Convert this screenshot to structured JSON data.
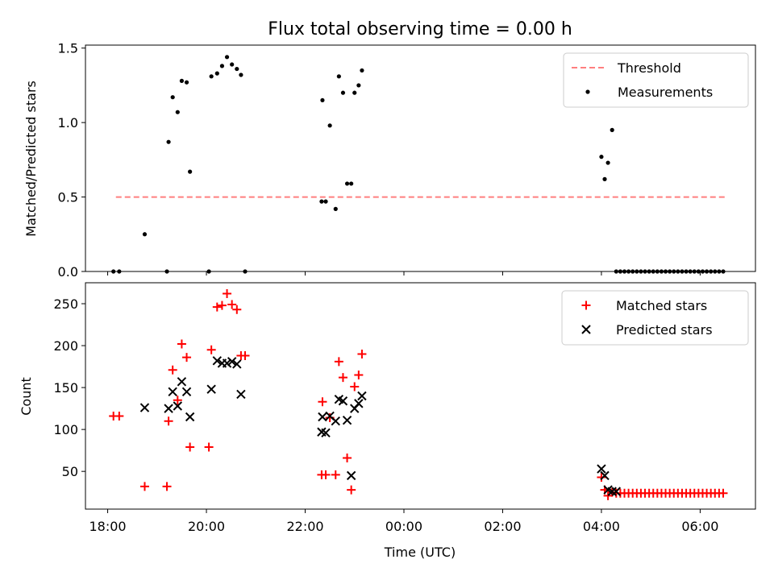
{
  "chart_data": [
    {
      "type": "scatter",
      "title": "Flux total observing time = 0.00 h",
      "xlabel": "",
      "ylabel": "Matched/Predicted stars",
      "xlim_hours": [
        17.55,
        31.12
      ],
      "ylim": [
        0,
        1.52
      ],
      "yticks": [
        0.0,
        0.5,
        1.0,
        1.5
      ],
      "ytick_labels": [
        "0.0",
        "0.5",
        "1.0",
        "1.5"
      ],
      "legend": {
        "position": "top-right",
        "entries": [
          "Threshold",
          "Measurements"
        ]
      },
      "threshold": {
        "name": "Threshold",
        "value": 0.5,
        "x_start": "18:10",
        "x_end": "06:30",
        "color": "#ff7f7f"
      },
      "series": [
        {
          "name": "Measurements",
          "marker": "dot",
          "color": "#000000",
          "points": [
            [
              "18:07",
              0.0
            ],
            [
              "18:14",
              0.0
            ],
            [
              "18:45",
              0.25
            ],
            [
              "19:12",
              0.0
            ],
            [
              "19:14",
              0.87
            ],
            [
              "19:19",
              1.17
            ],
            [
              "19:25",
              1.07
            ],
            [
              "19:30",
              1.28
            ],
            [
              "19:36",
              1.27
            ],
            [
              "19:40",
              0.67
            ],
            [
              "20:03",
              0.0
            ],
            [
              "20:06",
              1.31
            ],
            [
              "20:13",
              1.33
            ],
            [
              "20:19",
              1.38
            ],
            [
              "20:25",
              1.44
            ],
            [
              "20:31",
              1.39
            ],
            [
              "20:37",
              1.36
            ],
            [
              "20:42",
              1.32
            ],
            [
              "20:47",
              0.0
            ],
            [
              "22:20",
              0.47
            ],
            [
              "22:21",
              1.15
            ],
            [
              "22:25",
              0.47
            ],
            [
              "22:30",
              0.98
            ],
            [
              "22:37",
              0.42
            ],
            [
              "22:41",
              1.31
            ],
            [
              "22:46",
              1.2
            ],
            [
              "22:51",
              0.59
            ],
            [
              "22:56",
              0.59
            ],
            [
              "23:00",
              1.2
            ],
            [
              "23:05",
              1.25
            ],
            [
              "23:09",
              1.35
            ],
            [
              "04:00",
              0.77
            ],
            [
              "04:04",
              0.62
            ],
            [
              "04:08",
              0.73
            ],
            [
              "04:13",
              0.95
            ],
            [
              "04:18",
              0.0
            ],
            [
              "04:23",
              0.0
            ],
            [
              "04:28",
              0.0
            ],
            [
              "04:33",
              0.0
            ],
            [
              "04:38",
              0.0
            ],
            [
              "04:43",
              0.0
            ],
            [
              "04:48",
              0.0
            ],
            [
              "04:53",
              0.0
            ],
            [
              "04:58",
              0.0
            ],
            [
              "05:03",
              0.0
            ],
            [
              "05:08",
              0.0
            ],
            [
              "05:13",
              0.0
            ],
            [
              "05:18",
              0.0
            ],
            [
              "05:23",
              0.0
            ],
            [
              "05:28",
              0.0
            ],
            [
              "05:33",
              0.0
            ],
            [
              "05:38",
              0.0
            ],
            [
              "05:43",
              0.0
            ],
            [
              "05:48",
              0.0
            ],
            [
              "05:53",
              0.0
            ],
            [
              "05:58",
              0.0
            ],
            [
              "06:03",
              0.0
            ],
            [
              "06:08",
              0.0
            ],
            [
              "06:13",
              0.0
            ],
            [
              "06:18",
              0.0
            ],
            [
              "06:23",
              0.0
            ],
            [
              "06:28",
              0.0
            ]
          ]
        }
      ]
    },
    {
      "type": "scatter",
      "title": "",
      "xlabel": "Time (UTC)",
      "ylabel": "Count",
      "xlim_hours": [
        17.55,
        31.12
      ],
      "ylim": [
        5,
        275
      ],
      "yticks": [
        50,
        100,
        150,
        200,
        250
      ],
      "ytick_labels": [
        "50",
        "100",
        "150",
        "200",
        "250"
      ],
      "xticks_hours": [
        18,
        20,
        22,
        24,
        26,
        28,
        30
      ],
      "xtick_labels": [
        "18:00",
        "20:00",
        "22:00",
        "00:00",
        "02:00",
        "04:00",
        "06:00"
      ],
      "legend": {
        "position": "top-right",
        "entries": [
          "Matched stars",
          "Predicted stars"
        ]
      },
      "series": [
        {
          "name": "Matched stars",
          "marker": "plus",
          "color": "#ff0000",
          "points": [
            [
              "18:07",
              116
            ],
            [
              "18:14",
              116
            ],
            [
              "18:45",
              32
            ],
            [
              "19:12",
              32
            ],
            [
              "19:14",
              110
            ],
            [
              "19:19",
              171
            ],
            [
              "19:25",
              135
            ],
            [
              "19:30",
              202
            ],
            [
              "19:36",
              186
            ],
            [
              "19:40",
              79
            ],
            [
              "20:03",
              79
            ],
            [
              "20:06",
              195
            ],
            [
              "20:13",
              246
            ],
            [
              "20:19",
              248
            ],
            [
              "20:25",
              262
            ],
            [
              "20:31",
              249
            ],
            [
              "20:37",
              243
            ],
            [
              "20:42",
              188
            ],
            [
              "20:47",
              188
            ],
            [
              "22:20",
              46
            ],
            [
              "22:21",
              133
            ],
            [
              "22:25",
              46
            ],
            [
              "22:30",
              114
            ],
            [
              "22:37",
              46
            ],
            [
              "22:41",
              181
            ],
            [
              "22:46",
              162
            ],
            [
              "22:51",
              66
            ],
            [
              "22:56",
              28
            ],
            [
              "23:00",
              151
            ],
            [
              "23:05",
              165
            ],
            [
              "23:09",
              190
            ],
            [
              "04:00",
              43
            ],
            [
              "04:04",
              28
            ],
            [
              "04:08",
              21
            ],
            [
              "04:13",
              25
            ],
            [
              "04:18",
              24
            ],
            [
              "04:23",
              24
            ],
            [
              "04:28",
              24
            ],
            [
              "04:33",
              24
            ],
            [
              "04:38",
              24
            ],
            [
              "04:43",
              24
            ],
            [
              "04:48",
              24
            ],
            [
              "04:53",
              24
            ],
            [
              "04:58",
              24
            ],
            [
              "05:03",
              24
            ],
            [
              "05:08",
              24
            ],
            [
              "05:13",
              24
            ],
            [
              "05:18",
              24
            ],
            [
              "05:23",
              24
            ],
            [
              "05:28",
              24
            ],
            [
              "05:33",
              24
            ],
            [
              "05:38",
              24
            ],
            [
              "05:43",
              24
            ],
            [
              "05:48",
              24
            ],
            [
              "05:53",
              24
            ],
            [
              "05:58",
              24
            ],
            [
              "06:03",
              24
            ],
            [
              "06:08",
              24
            ],
            [
              "06:13",
              24
            ],
            [
              "06:18",
              24
            ],
            [
              "06:23",
              24
            ],
            [
              "06:28",
              24
            ]
          ]
        },
        {
          "name": "Predicted stars",
          "marker": "x",
          "color": "#000000",
          "points": [
            [
              "18:45",
              126
            ],
            [
              "19:14",
              125
            ],
            [
              "19:19",
              145
            ],
            [
              "19:25",
              128
            ],
            [
              "19:30",
              157
            ],
            [
              "19:36",
              145
            ],
            [
              "19:40",
              115
            ],
            [
              "20:06",
              148
            ],
            [
              "20:13",
              182
            ],
            [
              "20:19",
              179
            ],
            [
              "20:25",
              179
            ],
            [
              "20:31",
              181
            ],
            [
              "20:37",
              178
            ],
            [
              "20:42",
              142
            ],
            [
              "22:20",
              97
            ],
            [
              "22:21",
              115
            ],
            [
              "22:25",
              96
            ],
            [
              "22:30",
              116
            ],
            [
              "22:37",
              110
            ],
            [
              "22:41",
              136
            ],
            [
              "22:46",
              134
            ],
            [
              "22:51",
              111
            ],
            [
              "22:56",
              45
            ],
            [
              "23:00",
              125
            ],
            [
              "23:05",
              131
            ],
            [
              "23:09",
              140
            ],
            [
              "04:00",
              53
            ],
            [
              "04:04",
              45
            ],
            [
              "04:08",
              28
            ],
            [
              "04:13",
              26
            ],
            [
              "04:18",
              26
            ]
          ]
        }
      ]
    }
  ]
}
